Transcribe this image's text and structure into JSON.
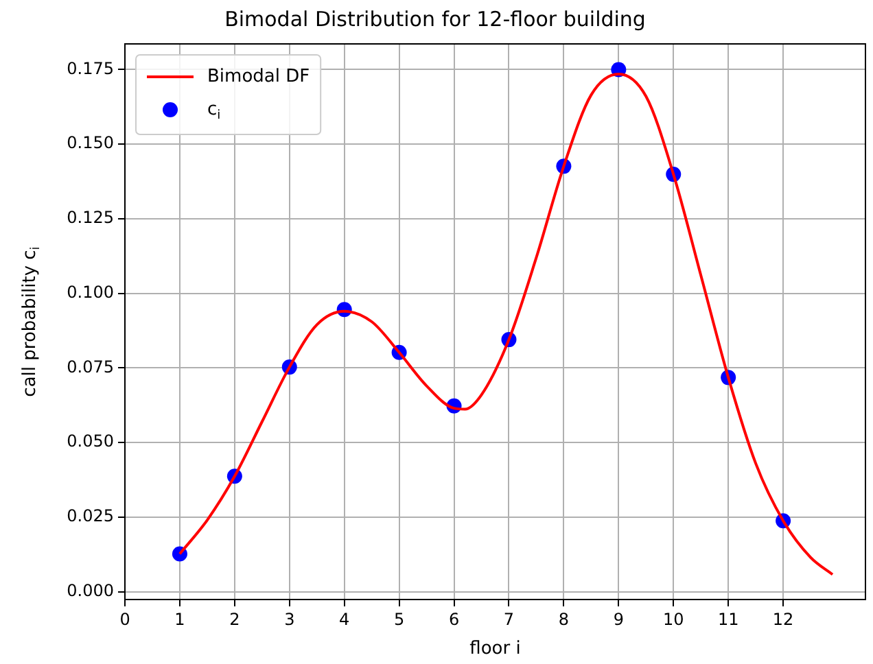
{
  "chart_data": {
    "type": "line",
    "title": "Bimodal Distribution for 12-floor building",
    "xlabel": "floor i",
    "ylabel": "call probability c$_{i}$",
    "xlim": [
      0,
      13.5
    ],
    "xticks": [
      0,
      1,
      2,
      3,
      4,
      5,
      6,
      7,
      8,
      9,
      10,
      11,
      12
    ],
    "ylim": [
      -0.0026,
      0.1836
    ],
    "yticks": [
      {
        "value": 0,
        "label": "0.000"
      },
      {
        "value": 0.025,
        "label": "0.025"
      },
      {
        "value": 0.05,
        "label": "0.050"
      },
      {
        "value": 0.075,
        "label": "0.075"
      },
      {
        "value": 0.1,
        "label": "0.100"
      },
      {
        "value": 0.125,
        "label": "0.125"
      },
      {
        "value": 0.15,
        "label": "0.150"
      },
      {
        "value": 0.175,
        "label": "0.175"
      }
    ],
    "grid": true,
    "legend": "top left",
    "series": [
      {
        "name": "Bimodal DF",
        "type": "line",
        "color": "#ff0000",
        "marker": "none",
        "line_style": "solid",
        "x": [
          1,
          1.5,
          2,
          2.5,
          3,
          3.5,
          4,
          4.5,
          5,
          5.5,
          6,
          6.2,
          6.5,
          7,
          7.5,
          8,
          8.5,
          9,
          9.5,
          10,
          10.5,
          11,
          11.5,
          12,
          12.5,
          12.9
        ],
        "values": [
          0.0127,
          0.024,
          0.0387,
          0.057,
          0.0753,
          0.0895,
          0.094,
          0.0905,
          0.0802,
          0.069,
          0.0615,
          0.0612,
          0.066,
          0.0845,
          0.112,
          0.1426,
          0.1665,
          0.1735,
          0.166,
          0.1399,
          0.106,
          0.0718,
          0.043,
          0.0238,
          0.0115,
          0.0058
        ]
      },
      {
        "name": "c$_{i}$",
        "type": "scatter",
        "color": "#0000ff",
        "marker": "circle",
        "x": [
          1,
          2,
          3,
          4,
          5,
          6,
          7,
          8,
          9,
          10,
          11,
          12
        ],
        "values": [
          0.0127,
          0.0387,
          0.0753,
          0.0946,
          0.0802,
          0.0623,
          0.0845,
          0.1426,
          0.175,
          0.1399,
          0.0718,
          0.0238
        ]
      }
    ]
  }
}
